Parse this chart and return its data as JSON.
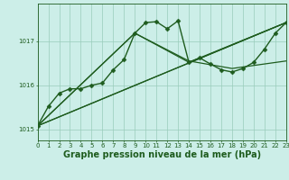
{
  "title": "Graphe pression niveau de la mer (hPa)",
  "bg_color": "#cceee8",
  "grid_color": "#99ccbb",
  "line_color": "#1e5c1e",
  "xlim": [
    0,
    23
  ],
  "ylim": [
    1014.75,
    1017.85
  ],
  "yticks": [
    1015,
    1016,
    1017
  ],
  "xticks": [
    0,
    1,
    2,
    3,
    4,
    5,
    6,
    7,
    8,
    9,
    10,
    11,
    12,
    13,
    14,
    15,
    16,
    17,
    18,
    19,
    20,
    21,
    22,
    23
  ],
  "series": [
    {
      "x": [
        0,
        1,
        2,
        3,
        4,
        5,
        6,
        7,
        8,
        9,
        10,
        11,
        12,
        13,
        14,
        15,
        16,
        17,
        18,
        19,
        20,
        21,
        22,
        23
      ],
      "y": [
        1015.08,
        1015.52,
        1015.82,
        1015.92,
        1015.92,
        1016.0,
        1016.05,
        1016.35,
        1016.58,
        1017.18,
        1017.42,
        1017.44,
        1017.28,
        1017.46,
        1016.52,
        1016.62,
        1016.48,
        1016.35,
        1016.3,
        1016.38,
        1016.52,
        1016.82,
        1017.18,
        1017.42
      ],
      "marker": "D",
      "markersize": 2.5,
      "linewidth": 1.0
    },
    {
      "x": [
        0,
        23
      ],
      "y": [
        1015.08,
        1017.42
      ],
      "marker": null,
      "markersize": 0,
      "linewidth": 0.9
    },
    {
      "x": [
        0,
        9,
        14,
        23
      ],
      "y": [
        1015.08,
        1017.18,
        1016.52,
        1017.42
      ],
      "marker": null,
      "markersize": 0,
      "linewidth": 0.9
    },
    {
      "x": [
        0,
        23
      ],
      "y": [
        1015.08,
        1017.42
      ],
      "marker": null,
      "markersize": 0,
      "linewidth": 0.9
    },
    {
      "x": [
        0,
        9,
        14,
        18,
        23
      ],
      "y": [
        1015.08,
        1017.18,
        1016.55,
        1016.38,
        1016.55
      ],
      "marker": null,
      "markersize": 0,
      "linewidth": 0.9
    }
  ],
  "title_fontsize": 7.0,
  "tick_fontsize": 5.0,
  "title_color": "#1e5c1e",
  "tick_color": "#1e5c1e",
  "spine_color": "#1e5c1e"
}
